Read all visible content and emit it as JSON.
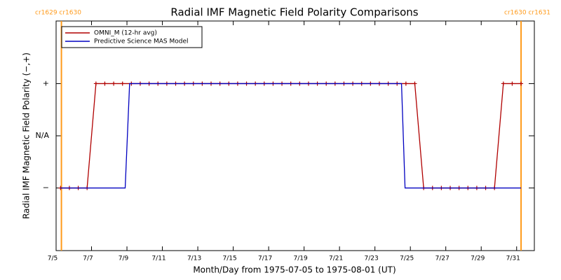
{
  "chart_data": {
    "type": "line",
    "title": "Radial IMF Magnetic Field Polarity Comparisons",
    "x_label": "Month/Day from 1975-07-05 to 1975-08-01 (UT)",
    "y_label": "Radial IMF Magnetic Field Polarity (−,+)",
    "xlim": [
      0,
      27
    ],
    "ylim": [
      -2.2,
      2.2
    ],
    "xticks": [
      {
        "value": 0,
        "label": "7/5"
      },
      {
        "value": 2,
        "label": "7/7"
      },
      {
        "value": 4,
        "label": "7/9"
      },
      {
        "value": 6,
        "label": "7/11"
      },
      {
        "value": 8,
        "label": "7/13"
      },
      {
        "value": 10,
        "label": "7/15"
      },
      {
        "value": 12,
        "label": "7/17"
      },
      {
        "value": 14,
        "label": "7/19"
      },
      {
        "value": 16,
        "label": "7/21"
      },
      {
        "value": 18,
        "label": "7/23"
      },
      {
        "value": 20,
        "label": "7/25"
      },
      {
        "value": 22,
        "label": "7/27"
      },
      {
        "value": 24,
        "label": "7/29"
      },
      {
        "value": 26,
        "label": "7/31"
      }
    ],
    "yticks": [
      {
        "value": -1,
        "label": "−"
      },
      {
        "value": 0,
        "label": "N/A"
      },
      {
        "value": 1,
        "label": "+"
      }
    ],
    "series": [
      {
        "name": "OMNI_M (12-hr avg)",
        "color": "#b00000",
        "marker": "plus",
        "x": [
          0.25,
          0.75,
          1.25,
          1.75,
          2.25,
          2.75,
          3.25,
          3.75,
          4.25,
          4.75,
          5.25,
          5.75,
          6.25,
          6.75,
          7.25,
          7.75,
          8.25,
          8.75,
          9.25,
          9.75,
          10.25,
          10.75,
          11.25,
          11.75,
          12.25,
          12.75,
          13.25,
          13.75,
          14.25,
          14.75,
          15.25,
          15.75,
          16.25,
          16.75,
          17.25,
          17.75,
          18.25,
          18.75,
          19.25,
          19.75,
          20.25,
          20.75,
          21.25,
          21.75,
          22.25,
          22.75,
          23.25,
          23.75,
          24.25,
          24.75,
          25.25,
          25.75,
          26.25
        ],
        "values": [
          -1,
          -1,
          -1,
          -1,
          1,
          1,
          1,
          1,
          1,
          1,
          1,
          1,
          1,
          1,
          1,
          1,
          1,
          1,
          1,
          1,
          1,
          1,
          1,
          1,
          1,
          1,
          1,
          1,
          1,
          1,
          1,
          1,
          1,
          1,
          1,
          1,
          1,
          1,
          1,
          1,
          1,
          -1,
          -1,
          -1,
          -1,
          -1,
          -1,
          -1,
          -1,
          -1,
          1,
          1,
          1
        ]
      },
      {
        "name": "Predictive Science MAS Model",
        "color": "#0000c0",
        "x": [
          0.25,
          3.9,
          4.15,
          19.5,
          19.7,
          26.25
        ],
        "values": [
          -1,
          -1,
          1,
          1,
          -1,
          -1
        ]
      }
    ],
    "annotations": [
      {
        "x": 0.3,
        "label": "cr1629 cr1630",
        "color": "#ff9a1a"
      },
      {
        "x": 26.25,
        "label": "cr1630 cr1631",
        "color": "#ff9a1a"
      }
    ],
    "legend": "upper left"
  }
}
